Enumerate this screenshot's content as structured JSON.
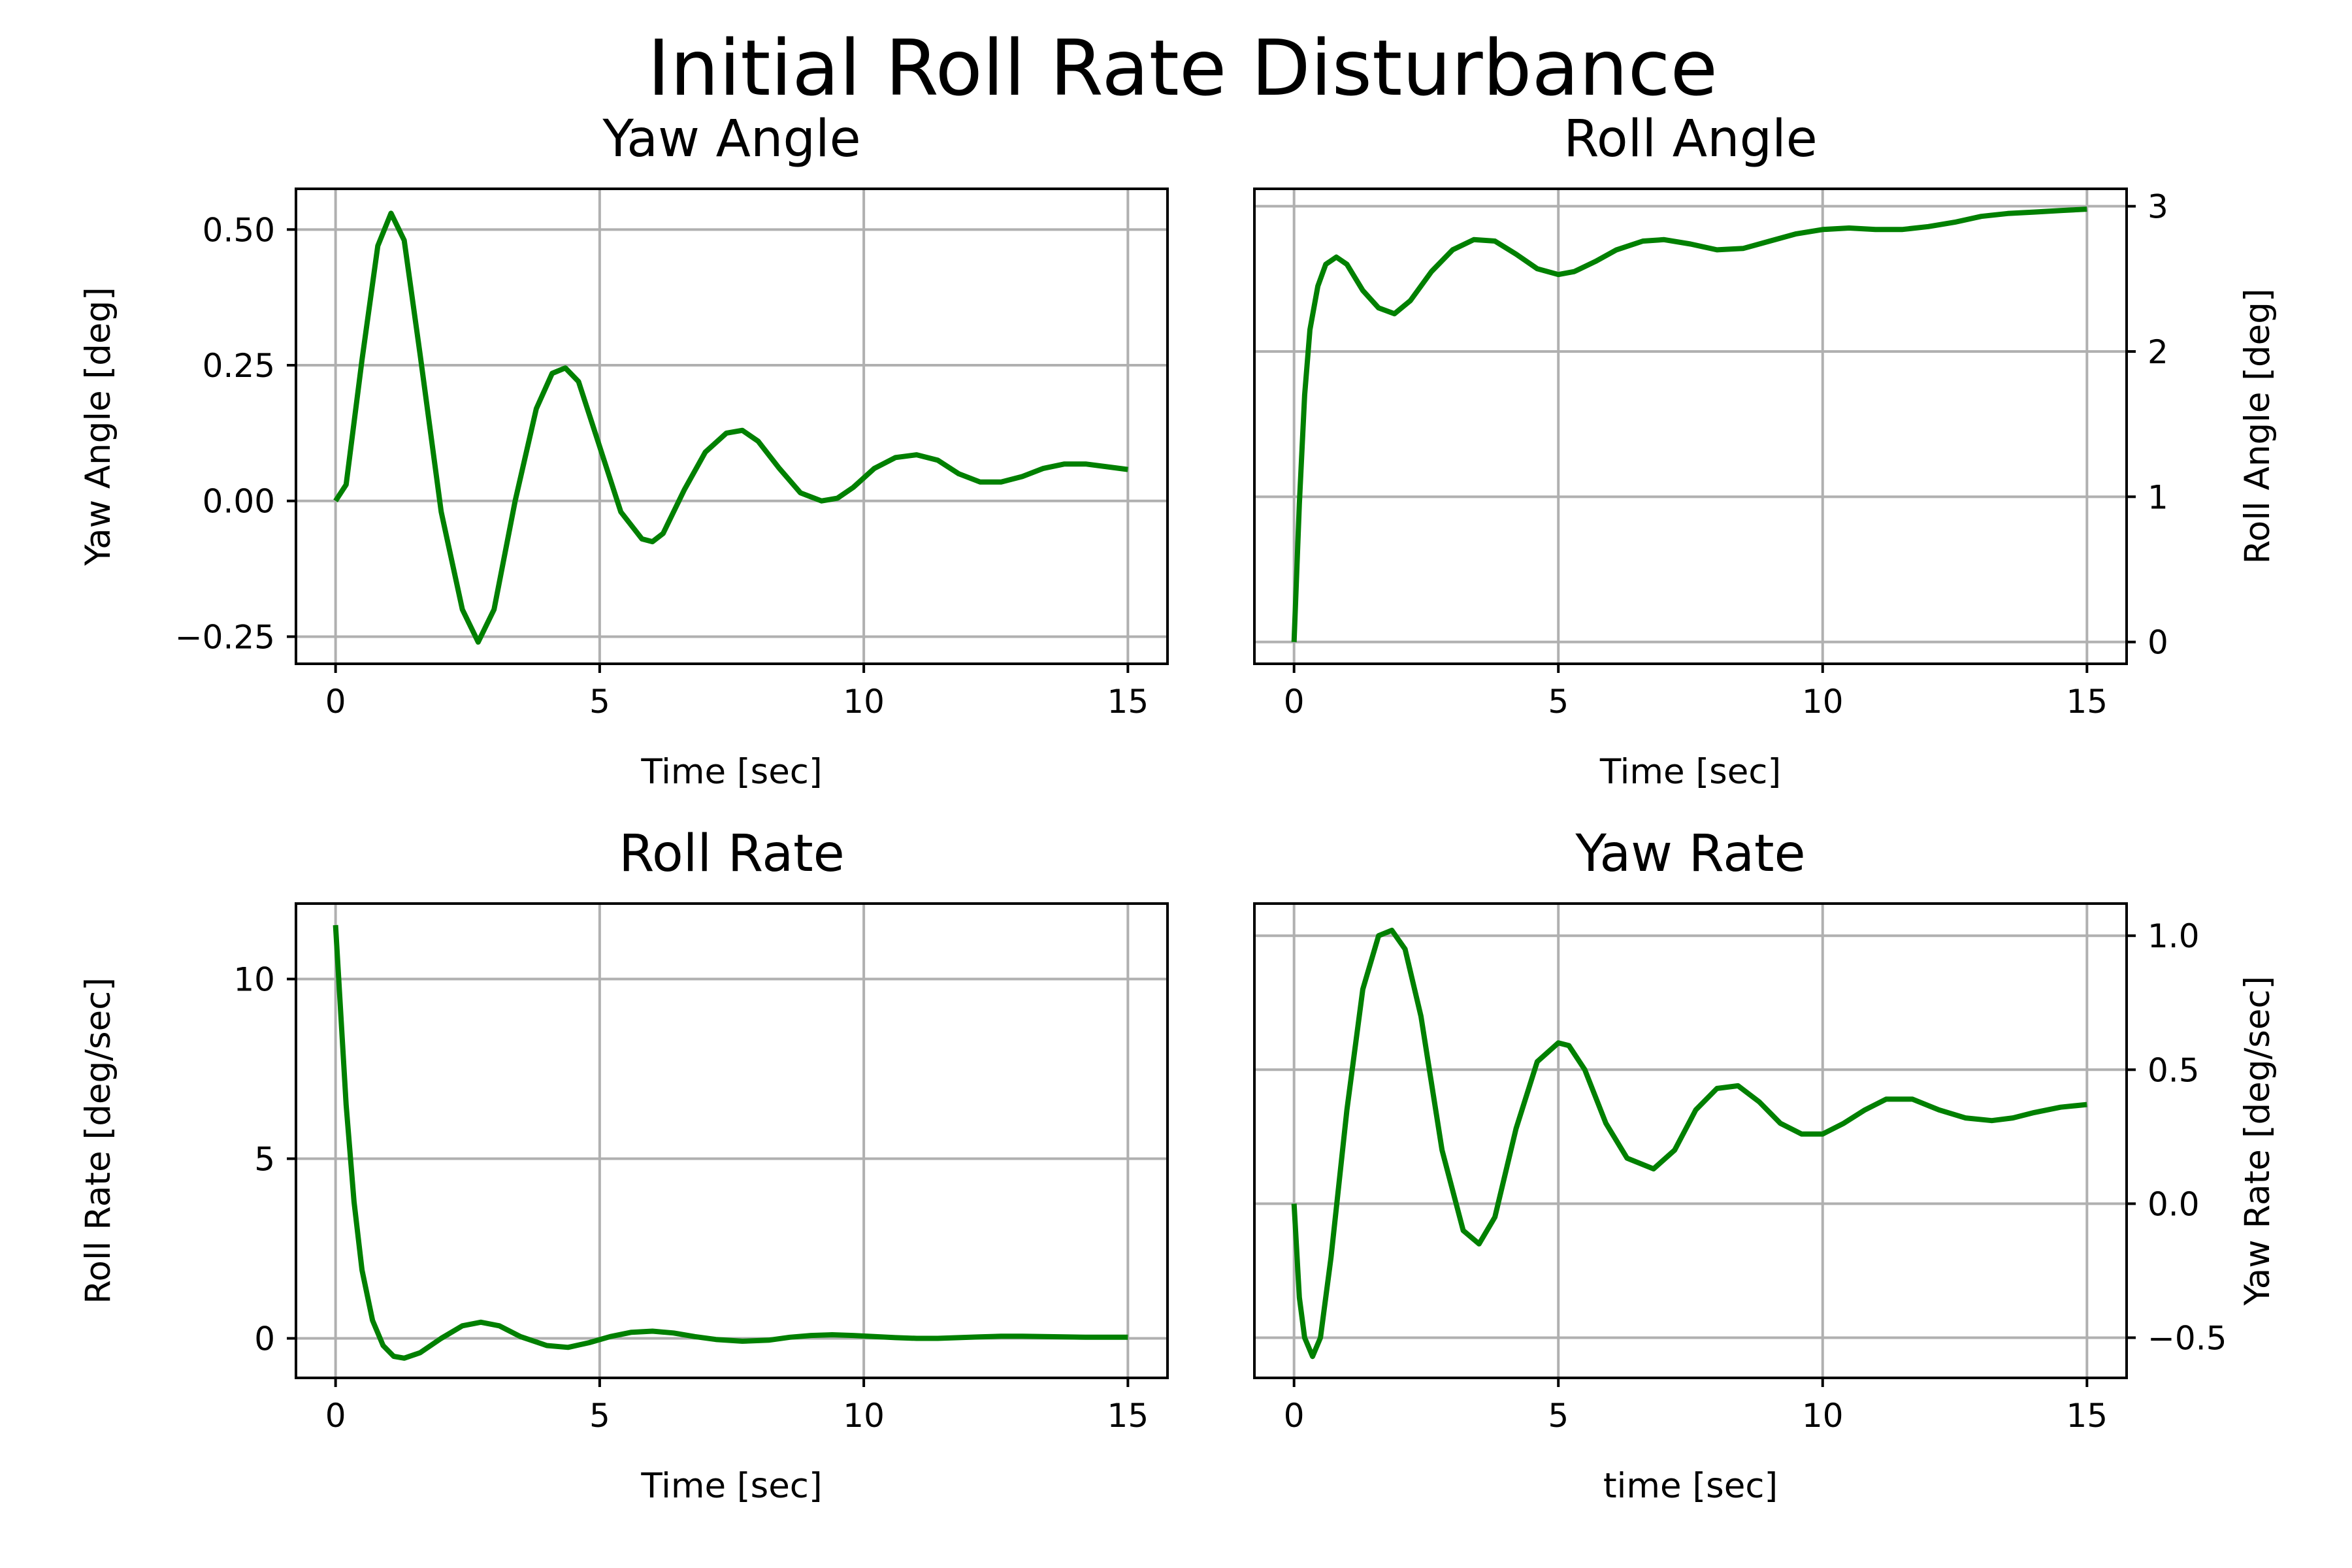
{
  "figure": {
    "title": "Initial Roll Rate Disturbance",
    "line_color": "#008000",
    "grid_color": "#b0b0b0"
  },
  "chart_data": [
    {
      "type": "line",
      "title": "Yaw Angle",
      "xlabel": "Time [sec]",
      "ylabel": "Yaw Angle [deg]",
      "y_axis_side": "left",
      "xlim": [
        -0.75,
        15.75
      ],
      "ylim": [
        -0.3,
        0.575
      ],
      "xticks": [
        0,
        5,
        10,
        15
      ],
      "xtick_labels": [
        "0",
        "5",
        "10",
        "15"
      ],
      "yticks": [
        -0.25,
        0,
        0.25,
        0.5
      ],
      "ytick_labels": [
        "−0.25",
        "0.00",
        "0.25",
        "0.50"
      ],
      "grid": true,
      "series": [
        {
          "x": [
            0,
            0.2,
            0.5,
            0.8,
            1.05,
            1.3,
            1.6,
            2.0,
            2.4,
            2.7,
            3.0,
            3.4,
            3.8,
            4.1,
            4.35,
            4.6,
            5.0,
            5.4,
            5.8,
            6.0,
            6.2,
            6.6,
            7.0,
            7.4,
            7.7,
            8.0,
            8.4,
            8.8,
            9.2,
            9.5,
            9.8,
            10.2,
            10.6,
            11.0,
            11.4,
            11.8,
            12.2,
            12.6,
            13.0,
            13.4,
            13.8,
            14.2,
            14.6,
            15.0
          ],
          "y": [
            0.0,
            0.03,
            0.26,
            0.47,
            0.53,
            0.48,
            0.27,
            -0.02,
            -0.2,
            -0.26,
            -0.2,
            0.0,
            0.17,
            0.235,
            0.245,
            0.22,
            0.1,
            -0.02,
            -0.07,
            -0.075,
            -0.06,
            0.02,
            0.09,
            0.125,
            0.13,
            0.11,
            0.06,
            0.015,
            0.0,
            0.005,
            0.025,
            0.06,
            0.08,
            0.085,
            0.075,
            0.05,
            0.035,
            0.035,
            0.045,
            0.06,
            0.068,
            0.068,
            0.063,
            0.058
          ]
        }
      ]
    },
    {
      "type": "line",
      "title": "Roll Angle",
      "xlabel": "Time [sec]",
      "ylabel": "Roll Angle [deg]",
      "y_axis_side": "right",
      "xlim": [
        -0.75,
        15.75
      ],
      "ylim": [
        -0.15,
        3.12
      ],
      "xticks": [
        0,
        5,
        10,
        15
      ],
      "xtick_labels": [
        "0",
        "5",
        "10",
        "15"
      ],
      "yticks": [
        0,
        1,
        2,
        3
      ],
      "ytick_labels": [
        "0",
        "1",
        "2",
        "3"
      ],
      "grid": true,
      "series": [
        {
          "x": [
            0,
            0.1,
            0.2,
            0.3,
            0.45,
            0.6,
            0.8,
            1.0,
            1.3,
            1.6,
            1.9,
            2.2,
            2.6,
            3.0,
            3.4,
            3.8,
            4.2,
            4.6,
            5.0,
            5.3,
            5.7,
            6.1,
            6.6,
            7.0,
            7.5,
            8.0,
            8.5,
            9.0,
            9.5,
            10.0,
            10.5,
            11.0,
            11.5,
            12.0,
            12.5,
            13.0,
            13.5,
            14.0,
            14.5,
            15.0
          ],
          "y": [
            0.0,
            0.95,
            1.7,
            2.15,
            2.45,
            2.6,
            2.65,
            2.6,
            2.42,
            2.3,
            2.26,
            2.35,
            2.55,
            2.7,
            2.77,
            2.76,
            2.67,
            2.57,
            2.53,
            2.55,
            2.62,
            2.7,
            2.76,
            2.77,
            2.74,
            2.7,
            2.71,
            2.76,
            2.81,
            2.84,
            2.85,
            2.84,
            2.84,
            2.86,
            2.89,
            2.93,
            2.95,
            2.96,
            2.97,
            2.98
          ]
        }
      ]
    },
    {
      "type": "line",
      "title": "Roll Rate",
      "xlabel": "Time [sec]",
      "ylabel": "Roll Rate [deg/sec]",
      "y_axis_side": "left",
      "xlim": [
        -0.75,
        15.75
      ],
      "ylim": [
        -1.1,
        12.1
      ],
      "xticks": [
        0,
        5,
        10,
        15
      ],
      "xtick_labels": [
        "0",
        "5",
        "10",
        "15"
      ],
      "yticks": [
        0,
        5,
        10
      ],
      "ytick_labels": [
        "0",
        "5",
        "10"
      ],
      "grid": true,
      "series": [
        {
          "x": [
            0,
            0.1,
            0.2,
            0.35,
            0.5,
            0.7,
            0.9,
            1.1,
            1.3,
            1.6,
            2.0,
            2.4,
            2.75,
            3.1,
            3.5,
            4.0,
            4.4,
            4.8,
            5.2,
            5.6,
            6.0,
            6.4,
            6.8,
            7.2,
            7.7,
            8.2,
            8.6,
            9.0,
            9.4,
            9.8,
            10.2,
            10.6,
            11.0,
            11.4,
            11.8,
            12.2,
            12.6,
            13.0,
            13.4,
            13.8,
            14.2,
            14.6,
            15.0
          ],
          "y": [
            11.5,
            9.0,
            6.5,
            3.8,
            1.9,
            0.5,
            -0.2,
            -0.5,
            -0.55,
            -0.4,
            0.0,
            0.35,
            0.45,
            0.35,
            0.05,
            -0.2,
            -0.25,
            -0.12,
            0.05,
            0.17,
            0.2,
            0.15,
            0.05,
            -0.03,
            -0.08,
            -0.05,
            0.03,
            0.08,
            0.1,
            0.08,
            0.05,
            0.02,
            0.0,
            0.0,
            0.02,
            0.04,
            0.06,
            0.06,
            0.05,
            0.04,
            0.03,
            0.03,
            0.03
          ]
        }
      ]
    },
    {
      "type": "line",
      "title": "Yaw Rate",
      "xlabel": "time [sec]",
      "ylabel": "Yaw Rate [deg/sec]",
      "y_axis_side": "right",
      "xlim": [
        -0.75,
        15.75
      ],
      "ylim": [
        -0.65,
        1.12
      ],
      "xticks": [
        0,
        5,
        10,
        15
      ],
      "xtick_labels": [
        "0",
        "5",
        "10",
        "15"
      ],
      "yticks": [
        -0.5,
        0,
        0.5,
        1.0
      ],
      "ytick_labels": [
        "−0.5",
        "0.0",
        "0.5",
        "1.0"
      ],
      "grid": true,
      "series": [
        {
          "x": [
            0,
            0.1,
            0.2,
            0.35,
            0.5,
            0.7,
            1.0,
            1.3,
            1.6,
            1.85,
            2.1,
            2.4,
            2.8,
            3.2,
            3.5,
            3.8,
            4.2,
            4.6,
            5.0,
            5.2,
            5.5,
            5.9,
            6.3,
            6.8,
            7.2,
            7.6,
            8.0,
            8.4,
            8.8,
            9.2,
            9.6,
            10.0,
            10.4,
            10.8,
            11.2,
            11.7,
            12.2,
            12.7,
            13.2,
            13.6,
            14.0,
            14.5,
            15.0
          ],
          "y": [
            0.0,
            -0.35,
            -0.5,
            -0.57,
            -0.5,
            -0.2,
            0.35,
            0.8,
            1.0,
            1.02,
            0.95,
            0.7,
            0.2,
            -0.1,
            -0.15,
            -0.05,
            0.28,
            0.53,
            0.6,
            0.59,
            0.5,
            0.3,
            0.17,
            0.13,
            0.2,
            0.35,
            0.43,
            0.44,
            0.38,
            0.3,
            0.26,
            0.26,
            0.3,
            0.35,
            0.39,
            0.39,
            0.35,
            0.32,
            0.31,
            0.32,
            0.34,
            0.36,
            0.37
          ]
        }
      ]
    }
  ]
}
